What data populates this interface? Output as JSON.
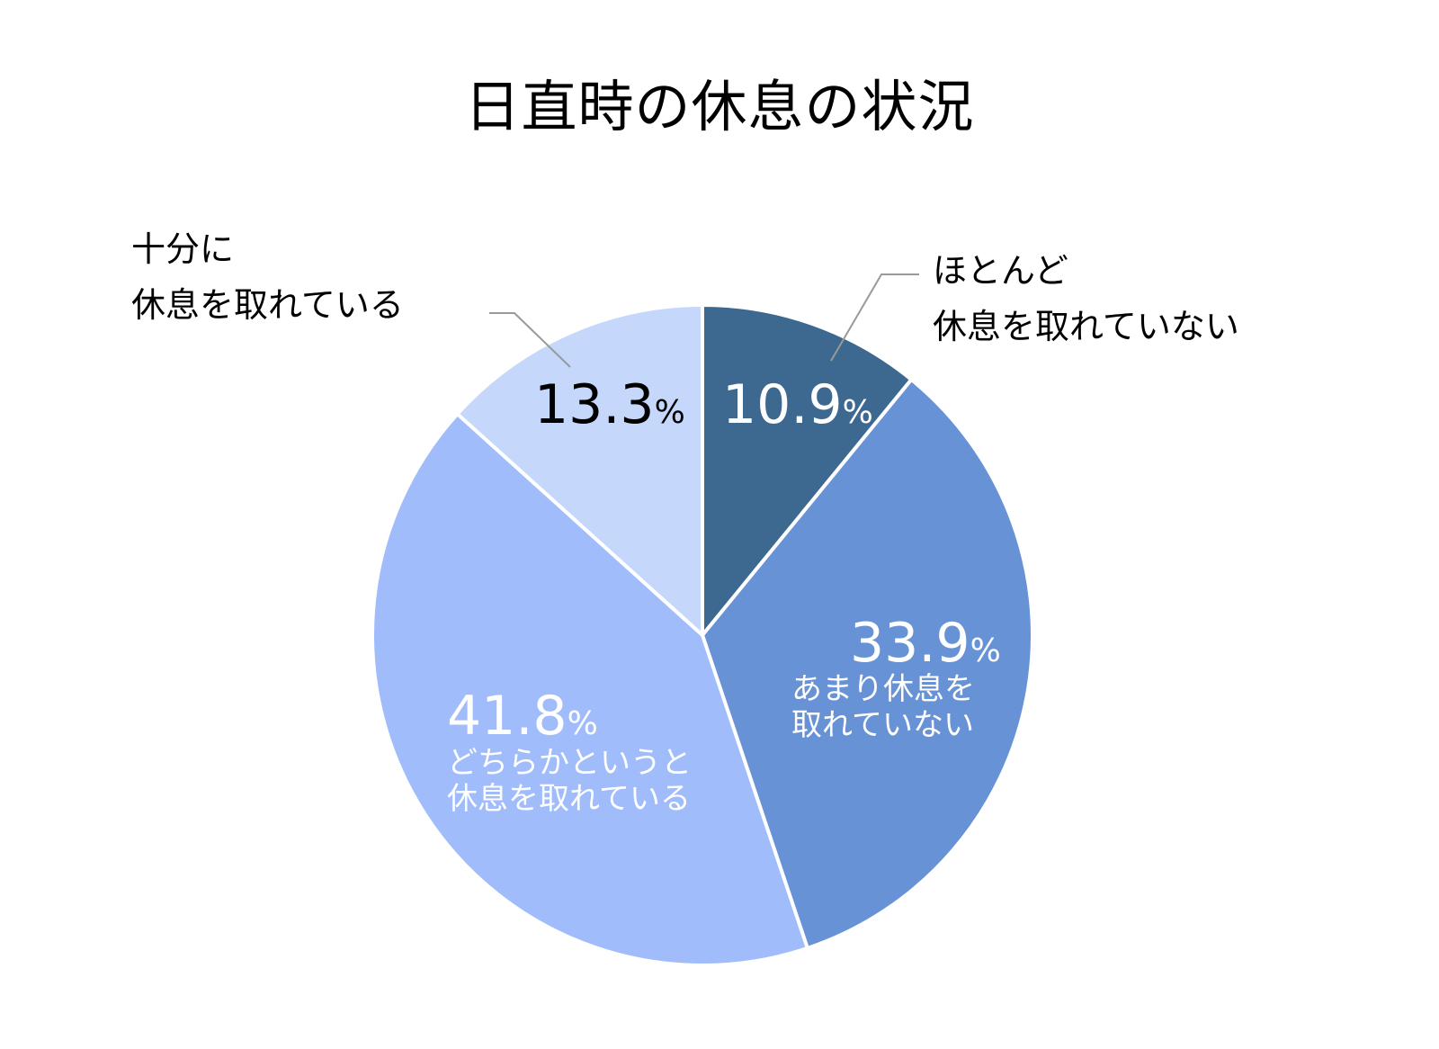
{
  "title": "日直時の休息の状況",
  "chart_data": {
    "type": "pie",
    "title": "日直時の休息の状況",
    "start_angle_deg": 0,
    "direction": "clockwise",
    "categories": [
      "ほとんど休息を取れていない",
      "あまり休息を取れていない",
      "どちらかというと休息を取れている",
      "十分に休息を取れている"
    ],
    "values": [
      10.9,
      33.9,
      41.8,
      13.3
    ],
    "unit": "%",
    "colors": [
      "#3d6890",
      "#6792d6",
      "#a0bcfb",
      "#c5d8fc"
    ],
    "legend": "none (data labels on slices)"
  },
  "labels": {
    "slice1": {
      "pct": "10.9",
      "sym": "%",
      "line1": "ほとんど",
      "line2": "休息を取れていない"
    },
    "slice2": {
      "pct": "33.9",
      "sym": "%",
      "line1": "あまり休息を",
      "line2": "取れていない"
    },
    "slice3": {
      "pct": "41.8",
      "sym": "%",
      "line1": "どちらかというと",
      "line2": "休息を取れている"
    },
    "slice4": {
      "pct": "13.3",
      "sym": "%",
      "line1": "十分に",
      "line2": "休息を取れている"
    }
  }
}
